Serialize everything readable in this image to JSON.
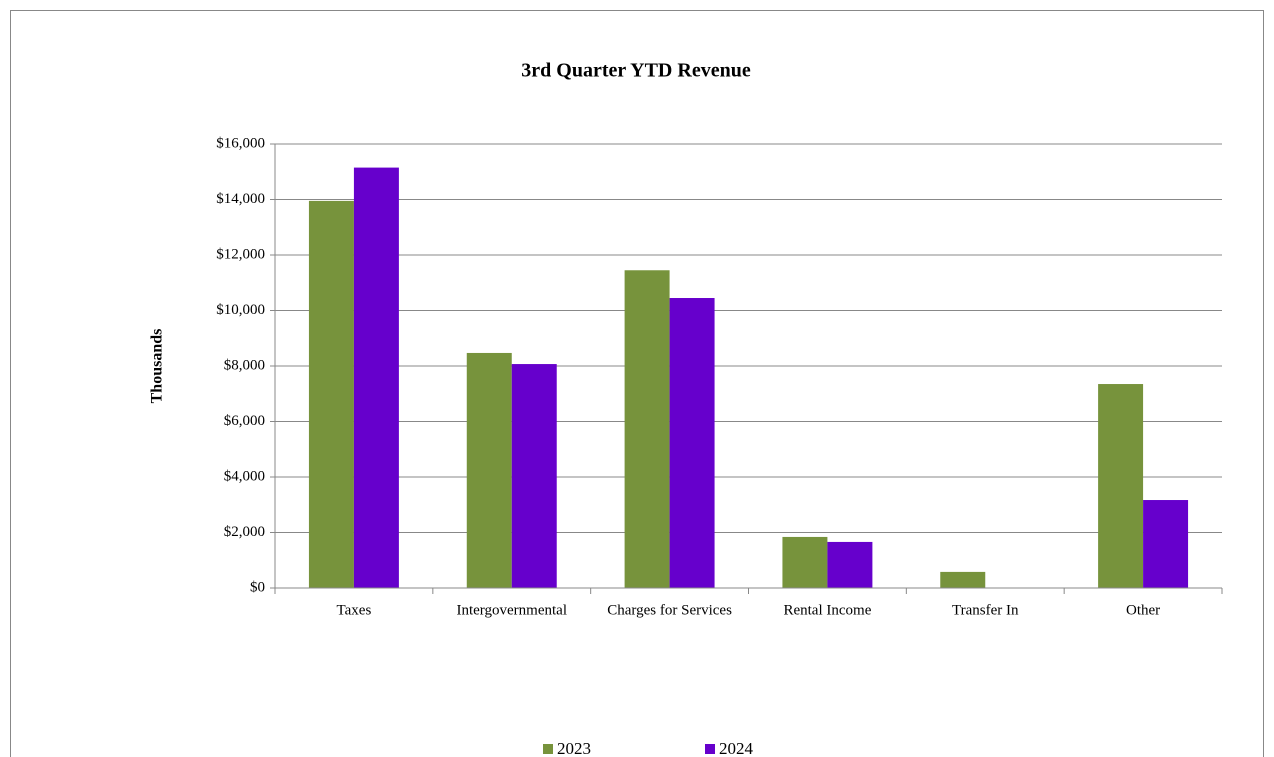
{
  "chart_data": {
    "type": "bar",
    "title": "3rd Quarter YTD Revenue",
    "y_label": "Thousands",
    "categories": [
      "Taxes",
      "Intergovernmental",
      "Charges for Services",
      "Rental Income",
      "Transfer In",
      "Other"
    ],
    "series": [
      {
        "name": "2023",
        "color": "#77933c",
        "values": [
          13950,
          8470,
          11450,
          1840,
          580,
          7350
        ]
      },
      {
        "name": "2024",
        "color": "#6600cc",
        "values": [
          15150,
          8070,
          10450,
          1660,
          0,
          3170
        ]
      }
    ],
    "ylim": [
      0,
      16000
    ],
    "yticks": [
      {
        "value": 0,
        "label": "$0"
      },
      {
        "value": 2000,
        "label": "$2,000"
      },
      {
        "value": 4000,
        "label": "$4,000"
      },
      {
        "value": 6000,
        "label": "$6,000"
      },
      {
        "value": 8000,
        "label": "$8,000"
      },
      {
        "value": 10000,
        "label": "$10,000"
      },
      {
        "value": 12000,
        "label": "$12,000"
      },
      {
        "value": 14000,
        "label": "$14,000"
      },
      {
        "value": 16000,
        "label": "$16,000"
      }
    ],
    "grid": true,
    "legend": "bottom"
  }
}
